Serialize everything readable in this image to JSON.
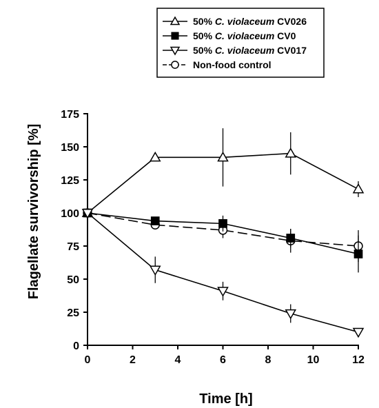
{
  "chart_data": {
    "type": "line",
    "xlabel": "Time [h]",
    "ylabel": "Flagellate survivorship [%]",
    "xlim": [
      0,
      12
    ],
    "ylim": [
      0,
      175
    ],
    "xticks": [
      0,
      2,
      4,
      6,
      8,
      10,
      12
    ],
    "yticks": [
      0,
      25,
      50,
      75,
      100,
      125,
      150,
      175
    ],
    "grid": false,
    "legend_position": "top",
    "series": [
      {
        "name": "50% C. violaceum CV026",
        "name_parts": [
          "50% ",
          "C. violaceum",
          " CV026"
        ],
        "marker": "triangle-up-open",
        "line": "solid",
        "x": [
          0,
          3,
          6,
          9,
          12
        ],
        "y": [
          100,
          142,
          142,
          145,
          118
        ],
        "err": [
          0,
          0,
          22,
          16,
          6
        ]
      },
      {
        "name": "50% C. violaceum CV0",
        "name_parts": [
          "50% ",
          "C. violaceum",
          " CV0"
        ],
        "marker": "square-filled",
        "line": "solid",
        "x": [
          0,
          3,
          6,
          9,
          12
        ],
        "y": [
          100,
          94,
          92,
          81,
          69
        ],
        "err": [
          0,
          0,
          6,
          7,
          14
        ]
      },
      {
        "name": "50% C. violaceum CV017",
        "name_parts": [
          "50% ",
          "C. violaceum",
          " CV017"
        ],
        "marker": "triangle-down-open",
        "line": "solid",
        "x": [
          0,
          3,
          6,
          9,
          12
        ],
        "y": [
          100,
          57,
          41,
          24,
          10
        ],
        "err": [
          0,
          10,
          7,
          7,
          2
        ]
      },
      {
        "name": "Non-food control",
        "name_parts": [
          "Non-food control"
        ],
        "marker": "circle-open",
        "line": "dashed",
        "x": [
          0,
          3,
          6,
          9,
          12
        ],
        "y": [
          100,
          91,
          87,
          79,
          75
        ],
        "err": [
          0,
          0,
          6,
          9,
          12
        ]
      }
    ]
  }
}
